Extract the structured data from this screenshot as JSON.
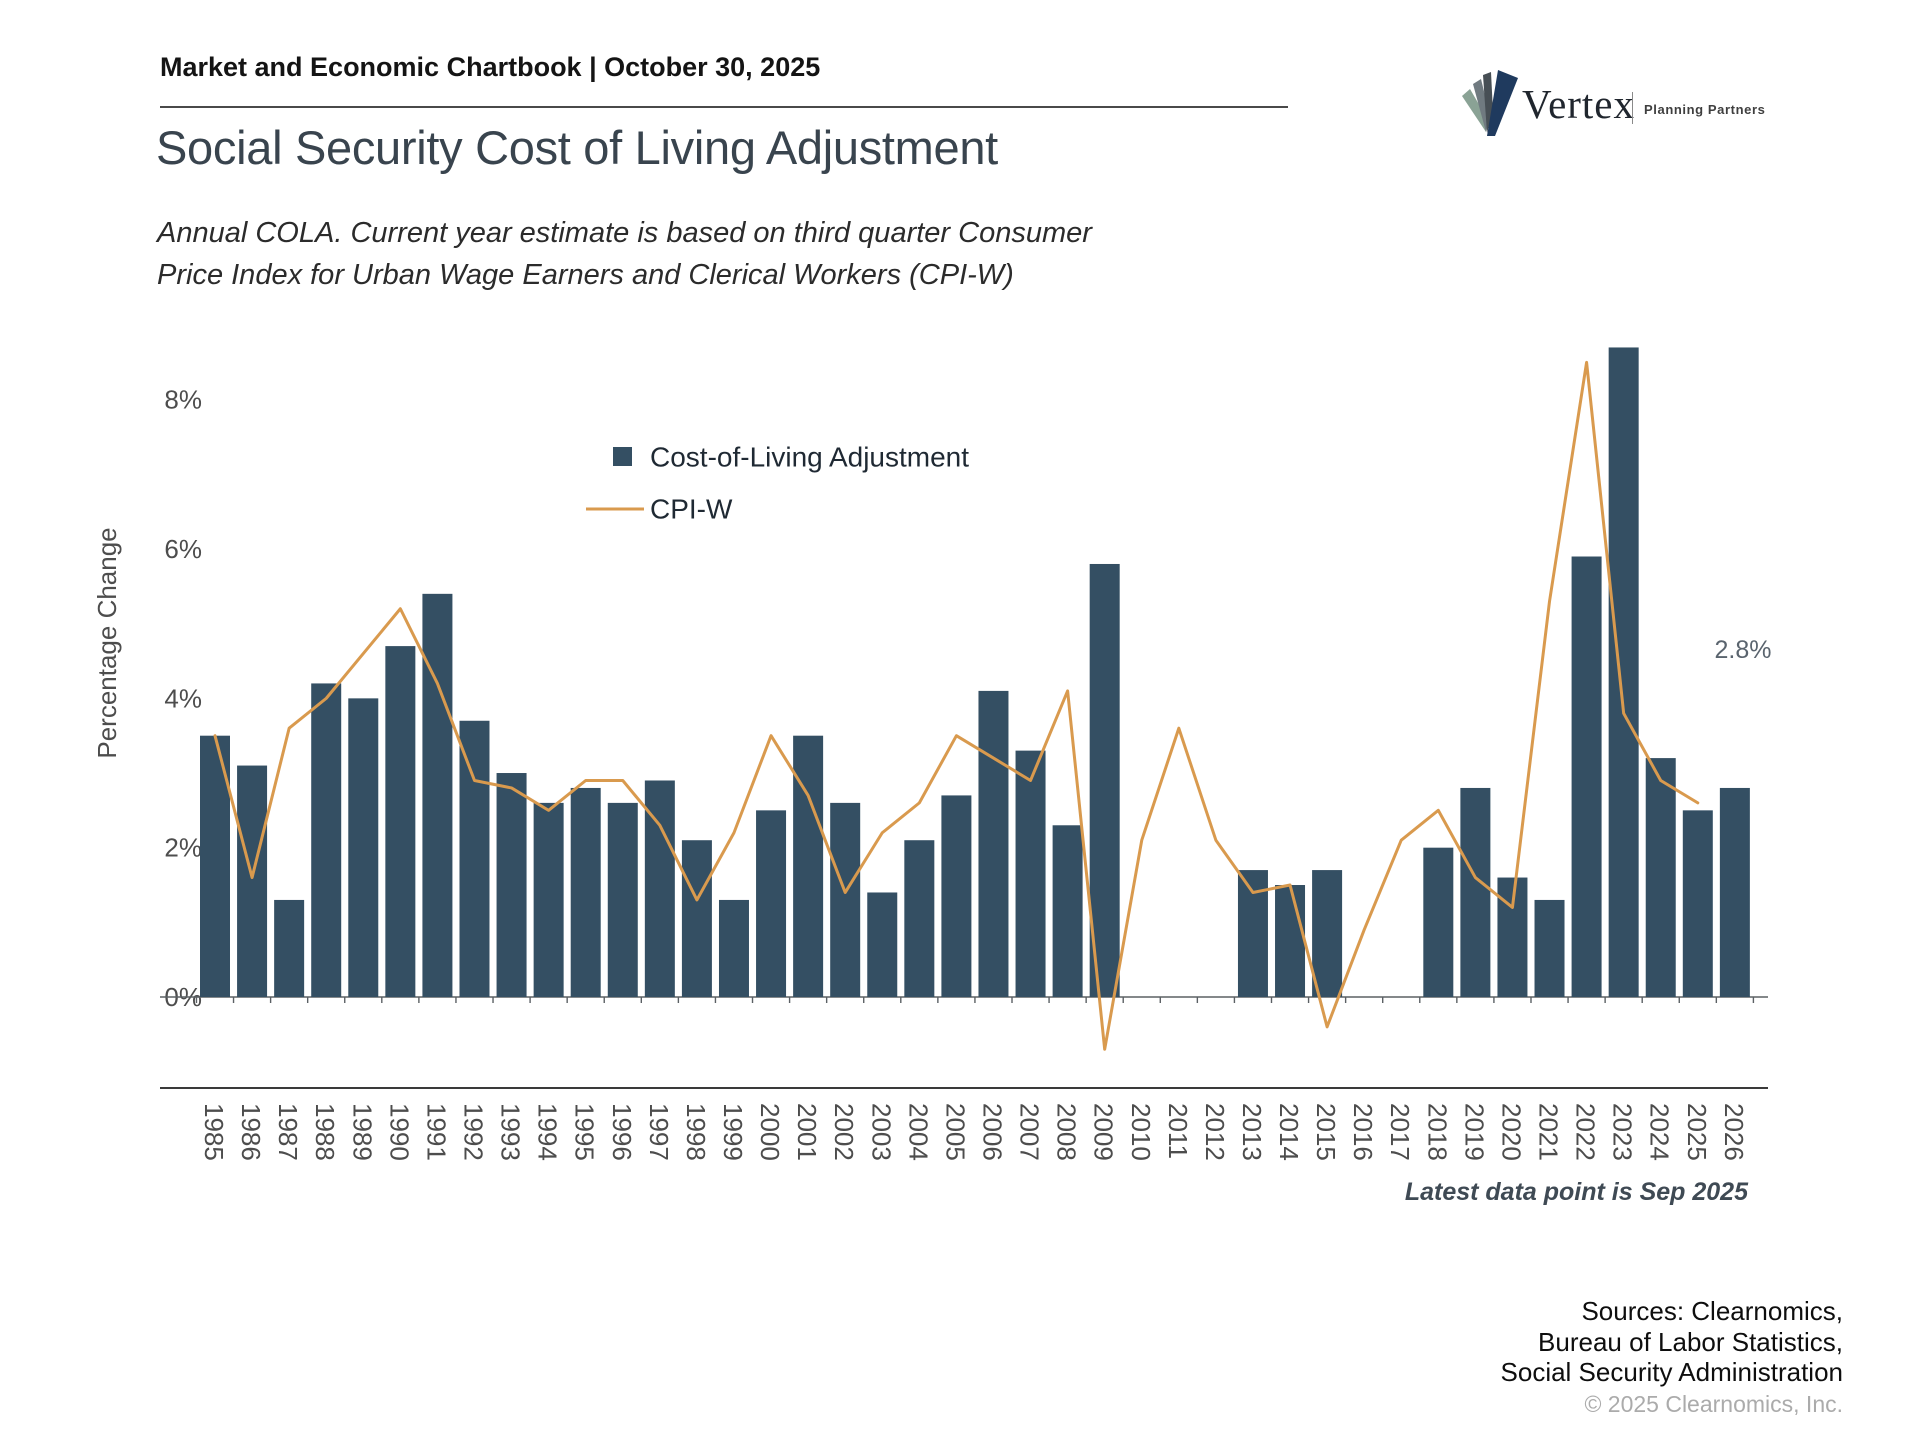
{
  "header": {
    "title": "Market and Economic Chartbook | October 30, 2025"
  },
  "logo": {
    "brand": "Vertex",
    "tagline": "Planning Partners"
  },
  "page": {
    "title": "Social Security Cost of Living Adjustment",
    "subtitle": "Annual COLA. Current year estimate is based on third quarter Consumer Price Index for Urban Wage Earners and Clerical Workers (CPI-W)"
  },
  "chart_data": {
    "type": "bar",
    "title": "Social Security Cost of Living Adjustment",
    "xlabel": "",
    "ylabel": "Percentage Change",
    "grid": false,
    "legend_position": "upper-center",
    "note": "Latest data point is Sep 2025",
    "annotation": {
      "text": "2.8%",
      "year": 2026,
      "value": 2.8
    },
    "y_axis": {
      "ticks": [
        0,
        2,
        4,
        6,
        8
      ],
      "tick_labels": [
        "0%",
        "2%",
        "4%",
        "6%",
        "8%"
      ],
      "ylim": [
        -1.0,
        9.3
      ]
    },
    "legend": [
      {
        "label": "Cost-of-Living Adjustment",
        "marker": "square",
        "color": "#344f63"
      },
      {
        "label": "CPI-W",
        "marker": "line",
        "color": "#d99a4e"
      }
    ],
    "years": [
      1985,
      1986,
      1987,
      1988,
      1989,
      1990,
      1991,
      1992,
      1993,
      1994,
      1995,
      1996,
      1997,
      1998,
      1999,
      2000,
      2001,
      2002,
      2003,
      2004,
      2005,
      2006,
      2007,
      2008,
      2009,
      2010,
      2011,
      2012,
      2013,
      2014,
      2015,
      2016,
      2017,
      2018,
      2019,
      2020,
      2021,
      2022,
      2023,
      2024,
      2025,
      2026
    ],
    "series": [
      {
        "name": "Cost-of-Living Adjustment",
        "type": "bar",
        "color": "#344f63",
        "values": [
          3.5,
          3.1,
          1.3,
          4.2,
          4.0,
          4.7,
          5.4,
          3.7,
          3.0,
          2.6,
          2.8,
          2.6,
          2.9,
          2.1,
          1.3,
          2.5,
          3.5,
          2.6,
          1.4,
          2.1,
          2.7,
          4.1,
          3.3,
          2.3,
          5.8,
          0,
          0,
          0,
          1.7,
          1.5,
          1.7,
          0,
          0,
          2.0,
          2.8,
          1.6,
          1.3,
          5.9,
          8.7,
          3.2,
          2.5,
          2.8
        ]
      },
      {
        "name": "CPI-W",
        "type": "line",
        "color": "#d99a4e",
        "values": [
          3.5,
          1.6,
          3.6,
          4.0,
          4.6,
          5.2,
          4.2,
          2.9,
          2.8,
          2.5,
          2.9,
          2.9,
          2.3,
          1.3,
          2.2,
          3.5,
          2.7,
          1.4,
          2.2,
          2.6,
          3.5,
          3.2,
          2.9,
          4.1,
          -0.7,
          2.1,
          3.6,
          2.1,
          1.4,
          1.5,
          -0.4,
          0.9,
          2.1,
          2.5,
          1.6,
          1.2,
          5.3,
          8.5,
          3.8,
          2.9,
          2.6,
          null
        ]
      }
    ]
  },
  "footer": {
    "sources": [
      "Sources: Clearnomics,",
      "Bureau of Labor Statistics,",
      "Social Security Administration"
    ],
    "copyright": "© 2025 Clearnomics, Inc."
  },
  "colors": {
    "bar": "#344f63",
    "line": "#d99a4e",
    "axis_text": "#4d4d4d",
    "title_text": "#39444e",
    "logo_navy": "#1f3a5e",
    "logo_sage": "#8aa295",
    "logo_gray": "#707a80",
    "logo_dark": "#474f55"
  }
}
